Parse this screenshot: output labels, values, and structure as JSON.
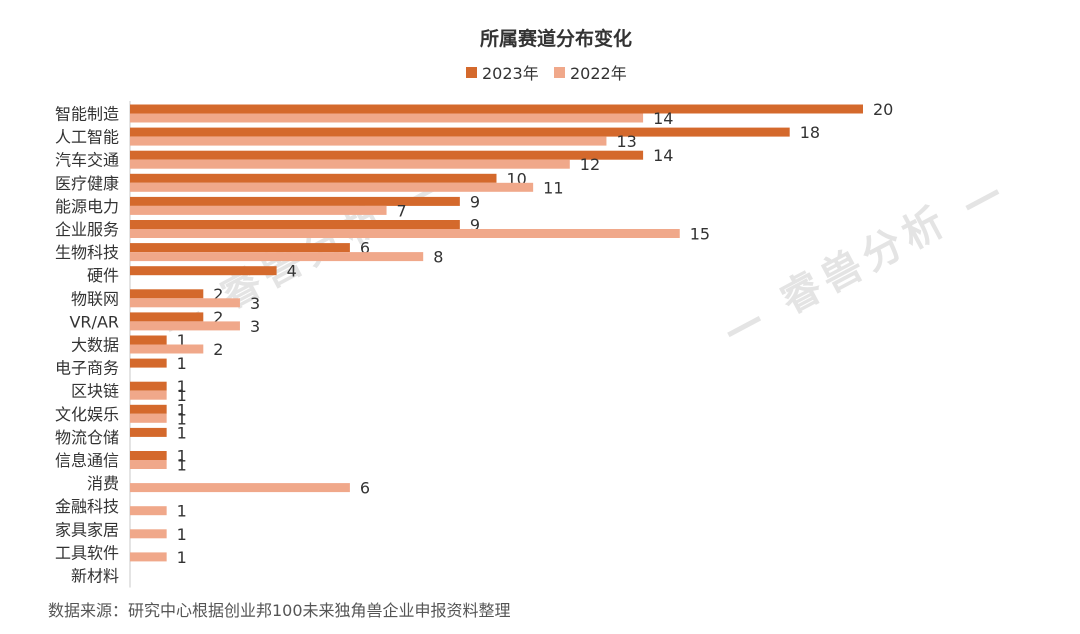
{
  "chart_data": {
    "type": "bar",
    "orientation": "horizontal",
    "title": "所属赛道分布变化",
    "legend_position": "top",
    "categories": [
      "智能制造",
      "人工智能",
      "汽车交通",
      "医疗健康",
      "能源电力",
      "企业服务",
      "生物科技",
      "硬件",
      "物联网",
      "VR/AR",
      "大数据",
      "电子商务",
      "区块链",
      "文化娱乐",
      "物流仓储",
      "信息通信",
      "消费",
      "金融科技",
      "家具家居",
      "工具软件",
      "新材料"
    ],
    "series": [
      {
        "name": "2023年",
        "color": "#d4692c",
        "values": [
          20,
          18,
          14,
          10,
          9,
          9,
          6,
          4,
          2,
          2,
          1,
          1,
          1,
          1,
          1,
          1,
          null,
          null,
          null,
          null,
          null
        ]
      },
      {
        "name": "2022年",
        "color": "#f0a88a",
        "values": [
          14,
          13,
          12,
          11,
          7,
          15,
          8,
          null,
          3,
          3,
          2,
          null,
          1,
          1,
          null,
          1,
          6,
          1,
          1,
          1,
          null
        ]
      }
    ],
    "xlim": [
      0,
      20
    ],
    "grid": false,
    "xlabel": "",
    "ylabel": ""
  },
  "watermark": "— 睿兽分析 —",
  "source_note": "数据来源：研究中心根据创业邦100未来独角兽企业申报资料整理"
}
